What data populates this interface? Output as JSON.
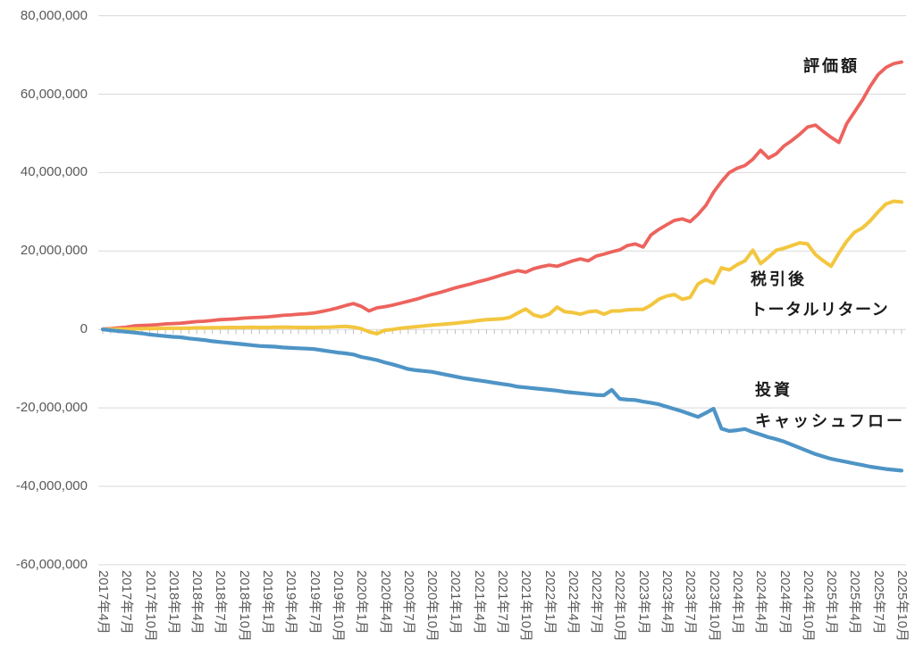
{
  "chart_data": {
    "type": "line",
    "title": "",
    "x_start_label": "2017年4月",
    "x_end_label": "2025年10月",
    "x_points_total": 103,
    "x_frequency": "monthly",
    "x_label_interval_months": 3,
    "x_tick_labels": [
      "2017年4月",
      "2017年7月",
      "2017年10月",
      "2018年1月",
      "2018年4月",
      "2018年7月",
      "2018年10月",
      "2019年1月",
      "2019年4月",
      "2019年7月",
      "2019年10月",
      "2020年1月",
      "2020年4月",
      "2020年7月",
      "2020年10月",
      "2021年1月",
      "2021年4月",
      "2021年7月",
      "2021年10月",
      "2022年1月",
      "2022年4月",
      "2022年7月",
      "2022年10月",
      "2023年1月",
      "2023年4月",
      "2023年7月",
      "2023年10月",
      "2024年1月",
      "2024年4月",
      "2024年7月",
      "2024年10月",
      "2025年1月",
      "2025年4月",
      "2025年7月",
      "2025年10月"
    ],
    "y_tick_labels": [
      "80,000,000",
      "60,000,000",
      "40,000,000",
      "20,000,000",
      "0",
      "-20,000,000",
      "-40,000,000",
      "-60,000,000"
    ],
    "y_tick_values_million": [
      80,
      60,
      40,
      20,
      0,
      -20,
      -40,
      -60
    ],
    "ylim_million": [
      -60,
      80
    ],
    "grid": true,
    "legend_position": "labels-on-chart",
    "gridline_color": "#D9D9D9",
    "tick_color": "#BFBFBF",
    "axis_text_color": "#595959",
    "annotation_text_color": "#1a1a1a",
    "series": [
      {
        "name": "評価額",
        "color": "#ED635D",
        "unit": "million JPY",
        "values_million": [
          0.1,
          0.2,
          0.4,
          0.6,
          0.9,
          1.0,
          1.1,
          1.2,
          1.4,
          1.5,
          1.6,
          1.8,
          2.0,
          2.1,
          2.3,
          2.5,
          2.6,
          2.7,
          2.9,
          3.0,
          3.1,
          3.2,
          3.4,
          3.6,
          3.7,
          3.9,
          4.0,
          4.2,
          4.6,
          5.0,
          5.5,
          6.1,
          6.6,
          5.9,
          4.7,
          5.5,
          5.8,
          6.2,
          6.7,
          7.2,
          7.7,
          8.3,
          8.9,
          9.4,
          10.0,
          10.6,
          11.1,
          11.6,
          12.2,
          12.7,
          13.3,
          13.9,
          14.5,
          15.0,
          14.6,
          15.5,
          16.0,
          16.4,
          16.1,
          16.8,
          17.5,
          18.0,
          17.5,
          18.7,
          19.2,
          19.8,
          20.3,
          21.4,
          21.8,
          21.0,
          24.1,
          25.5,
          26.7,
          27.8,
          28.2,
          27.5,
          29.3,
          31.6,
          35.0,
          37.7,
          40.0,
          41.1,
          41.8,
          43.4,
          45.7,
          43.7,
          44.8,
          46.8,
          48.2,
          49.8,
          51.6,
          52.1,
          50.5,
          49.0,
          47.7,
          52.5,
          55.5,
          58.5,
          62.0,
          65.0,
          66.8,
          67.8,
          68.2
        ]
      },
      {
        "name": "税引後トータルリターン",
        "color": "#F3C63F",
        "unit": "million JPY",
        "values_million": [
          0.0,
          0.05,
          0.1,
          0.1,
          0.15,
          0.2,
          0.2,
          0.25,
          0.3,
          0.3,
          0.3,
          0.35,
          0.4,
          0.4,
          0.45,
          0.45,
          0.5,
          0.5,
          0.5,
          0.55,
          0.5,
          0.5,
          0.55,
          0.6,
          0.55,
          0.5,
          0.5,
          0.5,
          0.55,
          0.6,
          0.7,
          0.8,
          0.6,
          0.2,
          -0.6,
          -1.1,
          -0.2,
          0.0,
          0.3,
          0.5,
          0.7,
          0.9,
          1.1,
          1.25,
          1.4,
          1.6,
          1.8,
          2.0,
          2.3,
          2.5,
          2.6,
          2.7,
          3.1,
          4.2,
          5.2,
          3.7,
          3.2,
          3.9,
          5.7,
          4.5,
          4.3,
          3.9,
          4.5,
          4.7,
          3.9,
          4.7,
          4.7,
          5.0,
          5.1,
          5.1,
          6.2,
          7.7,
          8.5,
          8.9,
          7.7,
          8.2,
          11.6,
          12.7,
          11.8,
          15.7,
          15.2,
          16.5,
          17.5,
          20.2,
          16.8,
          18.4,
          20.2,
          20.7,
          21.4,
          22.1,
          21.8,
          19.1,
          17.5,
          16.1,
          19.5,
          22.5,
          24.8,
          25.9,
          27.7,
          30.0,
          32.0,
          32.7,
          32.5
        ]
      },
      {
        "name": "投資キャッシュフロー",
        "color": "#4E94C6",
        "unit": "million JPY",
        "values_million": [
          0.0,
          -0.2,
          -0.4,
          -0.6,
          -0.8,
          -1.0,
          -1.3,
          -1.5,
          -1.7,
          -1.9,
          -2.0,
          -2.3,
          -2.5,
          -2.7,
          -3.0,
          -3.2,
          -3.4,
          -3.6,
          -3.8,
          -4.0,
          -4.2,
          -4.3,
          -4.4,
          -4.6,
          -4.7,
          -4.8,
          -4.9,
          -5.0,
          -5.3,
          -5.6,
          -5.9,
          -6.1,
          -6.4,
          -7.0,
          -7.4,
          -7.8,
          -8.4,
          -8.9,
          -9.5,
          -10.1,
          -10.4,
          -10.6,
          -10.8,
          -11.2,
          -11.6,
          -12.0,
          -12.4,
          -12.7,
          -13.0,
          -13.3,
          -13.6,
          -13.9,
          -14.2,
          -14.6,
          -14.8,
          -15.0,
          -15.2,
          -15.4,
          -15.6,
          -15.9,
          -16.1,
          -16.3,
          -16.5,
          -16.7,
          -16.8,
          -15.4,
          -17.7,
          -17.9,
          -18.0,
          -18.4,
          -18.7,
          -19.1,
          -19.7,
          -20.3,
          -20.9,
          -21.6,
          -22.3,
          -21.3,
          -20.2,
          -25.3,
          -25.9,
          -25.7,
          -25.4,
          -26.2,
          -26.8,
          -27.5,
          -28.0,
          -28.6,
          -29.4,
          -30.2,
          -31.0,
          -31.8,
          -32.4,
          -33.0,
          -33.4,
          -33.8,
          -34.2,
          -34.6,
          -35.0,
          -35.3,
          -35.6,
          -35.8,
          -36.0
        ]
      }
    ],
    "annotations": {
      "valuation": "評価額",
      "after_tax_line1": "税引後",
      "after_tax_line2": "トータルリターン",
      "cashflow_line1": "投資",
      "cashflow_line2": "キャッシュフロー"
    }
  }
}
